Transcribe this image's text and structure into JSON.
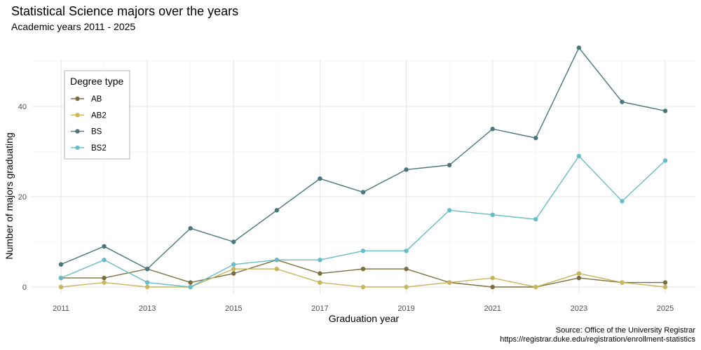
{
  "chart_data": {
    "type": "line",
    "title": "Statistical Science majors over the years",
    "subtitle": "Academic years 2011 - 2025",
    "xlabel": "Graduation year",
    "ylabel": "Number of majors graduating",
    "caption_lines": [
      "Source: Office of the University Registrar",
      "https://registrar.duke.edu/registration/enrollment-statistics"
    ],
    "x": [
      2011,
      2012,
      2013,
      2014,
      2015,
      2016,
      2017,
      2018,
      2019,
      2020,
      2021,
      2022,
      2023,
      2024,
      2025
    ],
    "xticks": [
      "2011",
      "2013",
      "2015",
      "2017",
      "2019",
      "2021",
      "2023",
      "2025"
    ],
    "yticks": [
      "0",
      "20",
      "40"
    ],
    "ylim": [
      0,
      53
    ],
    "legend_title": "Degree type",
    "legend_position": "top-left",
    "grid": true,
    "series": [
      {
        "name": "AB",
        "color": "#7b6e3b",
        "values": [
          2,
          2,
          4,
          1,
          3,
          6,
          3,
          4,
          4,
          1,
          0,
          0,
          2,
          1,
          1
        ]
      },
      {
        "name": "AB2",
        "color": "#c9b55c",
        "values": [
          0,
          1,
          0,
          0,
          4,
          4,
          1,
          0,
          0,
          1,
          2,
          0,
          3,
          1,
          0
        ]
      },
      {
        "name": "BS",
        "color": "#47777b",
        "values": [
          5,
          9,
          4,
          13,
          10,
          17,
          24,
          21,
          26,
          27,
          35,
          33,
          53,
          41,
          39
        ]
      },
      {
        "name": "BS2",
        "color": "#66bcc8",
        "values": [
          2,
          6,
          1,
          0,
          5,
          6,
          6,
          8,
          8,
          17,
          16,
          15,
          29,
          19,
          28
        ]
      }
    ]
  }
}
